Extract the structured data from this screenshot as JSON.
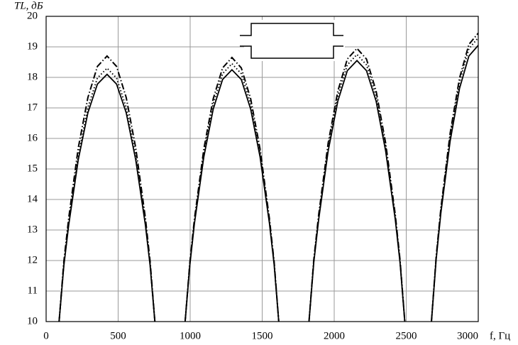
{
  "chart_data": {
    "type": "line",
    "ylabel": "TL, дБ",
    "xlabel": "f, Гц",
    "x": [
      90,
      123,
      157,
      223,
      290,
      356,
      423,
      489,
      556,
      622,
      689,
      722,
      755,
      860,
      965,
      998,
      1030,
      1095,
      1160,
      1225,
      1290,
      1355,
      1420,
      1485,
      1550,
      1583,
      1615,
      1720,
      1825,
      1858,
      1892,
      1958,
      2025,
      2091,
      2158,
      2224,
      2291,
      2357,
      2424,
      2457,
      2490,
      2580,
      2675,
      2708,
      2740,
      2805,
      2870,
      2935,
      3000
    ],
    "series": [
      {
        "color": "#000000",
        "style": "solid",
        "values": [
          10,
          11.83,
          13.17,
          15.3,
          16.84,
          17.78,
          18.1,
          17.78,
          16.84,
          15.3,
          13.17,
          11.83,
          10,
          null,
          10,
          11.86,
          13.23,
          15.4,
          16.96,
          17.93,
          18.25,
          17.93,
          16.96,
          15.4,
          13.23,
          11.86,
          10,
          null,
          10,
          11.93,
          13.34,
          15.59,
          17.22,
          18.22,
          18.55,
          18.22,
          17.22,
          15.59,
          13.34,
          11.93,
          10,
          null,
          10,
          12.05,
          13.54,
          15.92,
          17.64,
          18.7,
          19.05
        ]
      },
      {
        "color": "#000000",
        "style": "dotted",
        "values": [
          10,
          11.88,
          13.25,
          15.43,
          17.01,
          17.98,
          18.3,
          17.98,
          17.01,
          15.43,
          13.25,
          11.88,
          10,
          null,
          10,
          11.91,
          13.3,
          15.53,
          17.13,
          18.12,
          18.45,
          18.12,
          17.13,
          15.53,
          13.3,
          11.91,
          10,
          null,
          10,
          11.98,
          13.42,
          15.72,
          17.39,
          18.41,
          18.75,
          18.41,
          17.39,
          15.72,
          13.42,
          11.98,
          10,
          null,
          10,
          12.1,
          13.64,
          16.08,
          17.85,
          18.94,
          19.3
        ]
      },
      {
        "color": "#000000",
        "style": "dashdot",
        "values": [
          10,
          11.97,
          13.4,
          15.69,
          17.34,
          18.36,
          18.7,
          18.36,
          17.34,
          15.69,
          13.4,
          11.97,
          10,
          null,
          10,
          11.95,
          13.38,
          15.66,
          17.3,
          18.31,
          18.65,
          18.31,
          17.3,
          15.66,
          13.38,
          11.95,
          10,
          null,
          10,
          12.02,
          13.5,
          15.85,
          17.55,
          18.6,
          18.95,
          18.6,
          17.55,
          15.85,
          13.5,
          12.02,
          10,
          null,
          10,
          12.14,
          13.69,
          16.18,
          17.98,
          19.08,
          19.45
        ]
      }
    ],
    "xlim": [
      0,
      3000
    ],
    "xticks": [
      0,
      500,
      1000,
      1500,
      2000,
      2500,
      3000
    ],
    "ylim": [
      10,
      20
    ],
    "yticks": [
      10,
      11,
      12,
      13,
      14,
      15,
      16,
      17,
      18,
      19,
      20
    ],
    "grid": true
  }
}
